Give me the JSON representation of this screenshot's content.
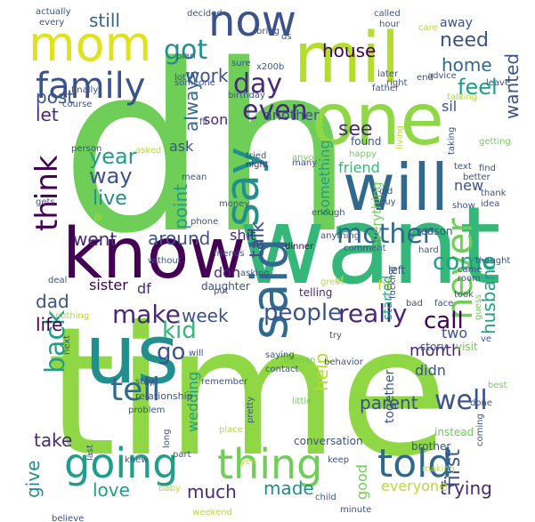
{
  "palette": {
    "lime": "#b5de2b",
    "green": "#6ece58",
    "bright_green": "#8fd744",
    "teal": "#1f9e89",
    "dark_teal": "#218f8d",
    "blue": "#31688e",
    "dark_blue": "#3b528b",
    "purple": "#482878",
    "dark_purple": "#440154",
    "cyan": "#35b779",
    "yellow": "#e0e31b"
  },
  "words": [
    {
      "id": "dh",
      "text": "dh",
      "color": "#6ece58"
    },
    {
      "id": "time",
      "text": "time",
      "color": "#8fd744"
    },
    {
      "id": "want",
      "text": "want",
      "color": "#35b779"
    },
    {
      "id": "know",
      "text": "know",
      "color": "#440154"
    },
    {
      "id": "one",
      "text": "one",
      "color": "#8fd744"
    },
    {
      "id": "mil",
      "text": "mil",
      "color": "#b5de2b"
    },
    {
      "id": "us",
      "text": "us",
      "color": "#218f8d"
    },
    {
      "id": "will",
      "text": "will",
      "color": "#31688e"
    },
    {
      "id": "mom",
      "text": "mom",
      "color": "#e0e31b"
    },
    {
      "id": "now",
      "text": "now",
      "color": "#3b528b"
    },
    {
      "id": "going",
      "text": "going",
      "color": "#1f9e89"
    },
    {
      "id": "thing",
      "text": "thing",
      "color": "#6ece58"
    },
    {
      "id": "told",
      "text": "told",
      "color": "#31688e"
    },
    {
      "id": "say",
      "text": "say",
      "color": "#218f8d"
    },
    {
      "id": "said",
      "text": "said",
      "color": "#31688e"
    },
    {
      "id": "family",
      "text": "family",
      "color": "#3b528b"
    },
    {
      "id": "back",
      "text": "back",
      "color": "#1f9e89"
    },
    {
      "id": "never",
      "text": "never",
      "color": "#6ece58"
    },
    {
      "id": "tell",
      "text": "tell",
      "color": "#31688e"
    },
    {
      "id": "make",
      "text": "make",
      "color": "#482878"
    },
    {
      "id": "really",
      "text": "really",
      "color": "#482878"
    },
    {
      "id": "people",
      "text": "people",
      "color": "#3b528b"
    },
    {
      "id": "think",
      "text": "think",
      "color": "#440154"
    },
    {
      "id": "even",
      "text": "even",
      "color": "#482878"
    },
    {
      "id": "got",
      "text": "got",
      "color": "#218f8d"
    },
    {
      "id": "day",
      "text": "day",
      "color": "#482878"
    },
    {
      "id": "mother",
      "text": "mother",
      "color": "#31688e"
    },
    {
      "id": "go",
      "text": "go",
      "color": "#3b528b"
    },
    {
      "id": "kid",
      "text": "kid",
      "color": "#35b779"
    },
    {
      "id": "well",
      "text": "well",
      "color": "#3b528b"
    },
    {
      "id": "call",
      "text": "call",
      "color": "#440154"
    },
    {
      "id": "house",
      "text": "house",
      "color": "#440154"
    },
    {
      "id": "need",
      "text": "need",
      "color": "#3b528b"
    },
    {
      "id": "home",
      "text": "home",
      "color": "#31688e"
    },
    {
      "id": "feel",
      "text": "feel",
      "color": "#1f9e89"
    },
    {
      "id": "wanted",
      "text": "wanted",
      "color": "#3b528b"
    },
    {
      "id": "see",
      "text": "see",
      "color": "#482878"
    },
    {
      "id": "come",
      "text": "come",
      "color": "#1f9e89"
    },
    {
      "id": "talk",
      "text": "talk",
      "color": "#3b528b"
    },
    {
      "id": "year",
      "text": "year",
      "color": "#1f9e89"
    },
    {
      "id": "way",
      "text": "way",
      "color": "#3b528b"
    },
    {
      "id": "live",
      "text": "live",
      "color": "#218f8d"
    },
    {
      "id": "around",
      "text": "around",
      "color": "#3b528b"
    },
    {
      "id": "went",
      "text": "went",
      "color": "#482878"
    },
    {
      "id": "still",
      "text": "still",
      "color": "#31688e"
    },
    {
      "id": "work",
      "text": "work",
      "color": "#3b528b"
    },
    {
      "id": "post",
      "text": "post",
      "color": "#3b528b"
    },
    {
      "id": "let",
      "text": "let",
      "color": "#482878"
    },
    {
      "id": "always",
      "text": "always",
      "color": "#31688e"
    },
    {
      "id": "point",
      "text": "point",
      "color": "#1f9e89"
    },
    {
      "id": "dad",
      "text": "dad",
      "color": "#3b528b"
    },
    {
      "id": "week",
      "text": "week",
      "color": "#3b528b"
    },
    {
      "id": "husband",
      "text": "husband",
      "color": "#1f9e89"
    },
    {
      "id": "parent",
      "text": "parent",
      "color": "#3b528b"
    },
    {
      "id": "help",
      "text": "help",
      "color": "#b5de2b"
    },
    {
      "id": "take",
      "text": "take",
      "color": "#482878"
    },
    {
      "id": "give",
      "text": "give",
      "color": "#218f8d"
    },
    {
      "id": "love",
      "text": "love",
      "color": "#1f9e89"
    },
    {
      "id": "much",
      "text": "much",
      "color": "#482878"
    },
    {
      "id": "made",
      "text": "made",
      "color": "#218f8d"
    },
    {
      "id": "first",
      "text": "first",
      "color": "#3b528b"
    },
    {
      "id": "trying",
      "text": "trying",
      "color": "#482878"
    },
    {
      "id": "everyone",
      "text": "everyone",
      "color": "#b5de2b"
    },
    {
      "id": "life",
      "text": "life",
      "color": "#440154"
    },
    {
      "id": "month",
      "text": "month",
      "color": "#482878"
    },
    {
      "id": "two",
      "text": "two",
      "color": "#3b528b"
    },
    {
      "id": "didn",
      "text": "didn",
      "color": "#3b528b"
    },
    {
      "id": "together",
      "text": "together",
      "color": "#3b528b"
    },
    {
      "id": "good",
      "text": "good",
      "color": "#6ece58"
    },
    {
      "id": "something",
      "text": "something",
      "color": "#1f9e89"
    },
    {
      "id": "everything",
      "text": "everything",
      "color": "#6ece58"
    },
    {
      "id": "friend",
      "text": "friend",
      "color": "#35b779"
    },
    {
      "id": "new",
      "text": "new",
      "color": "#3b528b"
    },
    {
      "id": "sister",
      "text": "sister",
      "color": "#440154"
    },
    {
      "id": "df",
      "text": "df",
      "color": "#482878"
    },
    {
      "id": "fil",
      "text": "fil",
      "color": "#b5de2b"
    },
    {
      "id": "started",
      "text": "started",
      "color": "#1f9e89"
    },
    {
      "id": "wedding",
      "text": "wedding",
      "color": "#1f9e89"
    },
    {
      "id": "shit",
      "text": "shit",
      "color": "#482878"
    },
    {
      "id": "ask",
      "text": "ask",
      "color": "#3b528b"
    },
    {
      "id": "son",
      "text": "son",
      "color": "#482878"
    },
    {
      "id": "sil",
      "text": "sil",
      "color": "#3b528b"
    },
    {
      "id": "another",
      "text": "another",
      "color": "#3b528b"
    },
    {
      "id": "don",
      "text": "don",
      "color": "#482878"
    },
    {
      "id": "conversation",
      "text": "conversation",
      "color": "#3b528b"
    },
    {
      "id": "instead",
      "text": "instead",
      "color": "#6ece58"
    },
    {
      "id": "brother",
      "text": "brother",
      "color": "#3b528b"
    },
    {
      "id": "visit",
      "text": "visit",
      "color": "#6ece58"
    },
    {
      "id": "story",
      "text": "story",
      "color": "#3b528b"
    },
    {
      "id": "telling",
      "text": "telling",
      "color": "#482878"
    },
    {
      "id": "daughter",
      "text": "daughter",
      "color": "#3b528b"
    },
    {
      "id": "relationship",
      "text": "relationship",
      "color": "#3b528b"
    },
    {
      "id": "problem",
      "text": "problem",
      "color": "#3b528b"
    },
    {
      "id": "dinner",
      "text": "dinner",
      "color": "#440154"
    },
    {
      "id": "comment",
      "text": "comment",
      "color": "#3b528b"
    },
    {
      "id": "reason",
      "text": "reason",
      "color": "#3b528b"
    },
    {
      "id": "found",
      "text": "found",
      "color": "#3b528b"
    },
    {
      "id": "living",
      "text": "living",
      "color": "#b5de2b"
    },
    {
      "id": "happy",
      "text": "happy",
      "color": "#6ece58"
    },
    {
      "id": "tried",
      "text": "tried",
      "color": "#3b528b"
    },
    {
      "id": "night",
      "text": "night",
      "color": "#482878"
    },
    {
      "id": "mean",
      "text": "mean",
      "color": "#3b528b"
    },
    {
      "id": "asked",
      "text": "asked",
      "color": "#b5de2b"
    },
    {
      "id": "money",
      "text": "money",
      "color": "#3b528b"
    },
    {
      "id": "gets",
      "text": "gets",
      "color": "#3b528b"
    },
    {
      "id": "without",
      "text": "without",
      "color": "#3b528b"
    },
    {
      "id": "deal",
      "text": "deal",
      "color": "#3b528b"
    },
    {
      "id": "phone",
      "text": "phone",
      "color": "#3b528b"
    },
    {
      "id": "friends",
      "text": "friends",
      "color": "#3b528b"
    },
    {
      "id": "fucking",
      "text": "fucking",
      "color": "#3b528b"
    },
    {
      "id": "left",
      "text": "left",
      "color": "#3b528b"
    },
    {
      "id": "woman",
      "text": "woman",
      "color": "#6ece58"
    },
    {
      "id": "guess",
      "text": "guess",
      "color": "#6ece58"
    },
    {
      "id": "took",
      "text": "took",
      "color": "#3b528b"
    },
    {
      "id": "hard",
      "text": "hard",
      "color": "#3b528b"
    },
    {
      "id": "thought",
      "text": "thought",
      "color": "#3b528b"
    },
    {
      "id": "best",
      "text": "best",
      "color": "#6ece58"
    },
    {
      "id": "baby",
      "text": "baby",
      "color": "#b5de2b"
    },
    {
      "id": "weekend",
      "text": "weekend",
      "color": "#b5de2b"
    },
    {
      "id": "child",
      "text": "child",
      "color": "#3b528b"
    },
    {
      "id": "minute",
      "text": "minute",
      "color": "#3b528b"
    },
    {
      "id": "place",
      "text": "place",
      "color": "#b5de2b"
    },
    {
      "id": "making",
      "text": "making",
      "color": "#b5de2b"
    },
    {
      "id": "keep",
      "text": "keep",
      "color": "#3b528b"
    },
    {
      "id": "pretty",
      "text": "pretty",
      "color": "#3b528b"
    },
    {
      "id": "little",
      "text": "little",
      "color": "#6ece58"
    },
    {
      "id": "remember",
      "text": "remember",
      "color": "#3b528b"
    },
    {
      "id": "saying",
      "text": "saying",
      "color": "#3b528b"
    },
    {
      "id": "contact",
      "text": "contact",
      "color": "#3b528b"
    },
    {
      "id": "bil",
      "text": "bil",
      "color": "#3b528b"
    },
    {
      "id": "stay",
      "text": "stay",
      "color": "#3b528b"
    },
    {
      "id": "knew",
      "text": "knew",
      "color": "#3b528b"
    },
    {
      "id": "part",
      "text": "part",
      "color": "#3b528b"
    },
    {
      "id": "long",
      "text": "long",
      "color": "#3b528b"
    },
    {
      "id": "behavior",
      "text": "behavior",
      "color": "#3b528b"
    },
    {
      "id": "next",
      "text": "next",
      "color": "#3b528b"
    },
    {
      "id": "nothing",
      "text": "nothing",
      "color": "#b5de2b"
    },
    {
      "id": "many",
      "text": "many",
      "color": "#3b528b"
    },
    {
      "id": "anyone",
      "text": "anyone",
      "color": "#6ece58"
    },
    {
      "id": "actually",
      "text": "actually",
      "color": "#3b528b"
    },
    {
      "id": "every",
      "text": "every",
      "color": "#3b528b"
    },
    {
      "id": "decided",
      "text": "decided",
      "color": "#3b528b"
    },
    {
      "id": "called",
      "text": "called",
      "color": "#3b528b"
    },
    {
      "id": "hour",
      "text": "hour",
      "color": "#3b528b"
    },
    {
      "id": "away",
      "text": "away",
      "color": "#3b528b"
    },
    {
      "id": "care",
      "text": "care",
      "color": "#b5de2b"
    },
    {
      "id": "plan",
      "text": "plan",
      "color": "#3b528b"
    },
    {
      "id": "lot",
      "text": "lot",
      "color": "#3b528b"
    },
    {
      "id": "bring",
      "text": "bring",
      "color": "#3b528b"
    },
    {
      "id": "ds",
      "text": "ds",
      "color": "#3b528b"
    },
    {
      "id": "sure",
      "text": "sure",
      "color": "#3b528b"
    },
    {
      "id": "x200b",
      "text": "x200b",
      "color": "#3b528b"
    },
    {
      "id": "later",
      "text": "later",
      "color": "#3b528b"
    },
    {
      "id": "right",
      "text": "right",
      "color": "#3b528b"
    },
    {
      "id": "end",
      "text": "end",
      "color": "#3b528b"
    },
    {
      "id": "advice",
      "text": "advice",
      "color": "#3b528b"
    },
    {
      "id": "father",
      "text": "father",
      "color": "#3b528b"
    },
    {
      "id": "talking",
      "text": "talking",
      "color": "#b5de2b"
    },
    {
      "id": "finally",
      "text": "finally",
      "color": "#3b528b"
    },
    {
      "id": "course",
      "text": "course",
      "color": "#3b528b"
    },
    {
      "id": "someone",
      "text": "someone",
      "color": "#3b528b"
    },
    {
      "id": "birthday",
      "text": "birthday",
      "color": "#3b528b"
    },
    {
      "id": "taking",
      "text": "taking",
      "color": "#3b528b"
    },
    {
      "id": "getting",
      "text": "getting",
      "color": "#6ece58"
    },
    {
      "id": "find",
      "text": "find",
      "color": "#3b528b"
    },
    {
      "id": "text",
      "text": "text",
      "color": "#3b528b"
    },
    {
      "id": "better",
      "text": "better",
      "color": "#3b528b"
    },
    {
      "id": "thank",
      "text": "thank",
      "color": "#3b528b"
    },
    {
      "id": "idea",
      "text": "idea",
      "color": "#3b528b"
    },
    {
      "id": "show",
      "text": "show",
      "color": "#3b528b"
    },
    {
      "id": "old",
      "text": "old",
      "color": "#3b528b"
    },
    {
      "id": "guy",
      "text": "guy",
      "color": "#3b528b"
    },
    {
      "id": "enough",
      "text": "enough",
      "color": "#3b528b"
    },
    {
      "id": "anything",
      "text": "anything",
      "color": "#3b528b"
    },
    {
      "id": "person",
      "text": "person",
      "color": "#3b528b"
    },
    {
      "id": "came",
      "text": "came",
      "color": "#3b528b"
    },
    {
      "id": "room",
      "text": "room",
      "color": "#3b528b"
    },
    {
      "id": "bf",
      "text": "bf",
      "color": "#b5de2b"
    },
    {
      "id": "put",
      "text": "put",
      "color": "#3b528b"
    },
    {
      "id": "great",
      "text": "great",
      "color": "#b5de2b"
    },
    {
      "id": "bad",
      "text": "bad",
      "color": "#3b528b"
    },
    {
      "id": "face",
      "text": "face",
      "color": "#3b528b"
    },
    {
      "id": "try",
      "text": "try",
      "color": "#3b528b"
    },
    {
      "id": "done",
      "text": "done",
      "color": "#3b528b"
    },
    {
      "id": "coming",
      "text": "coming",
      "color": "#3b528b"
    },
    {
      "id": "ve",
      "text": "ve",
      "color": "#3b528b"
    },
    {
      "id": "yes",
      "text": "yes",
      "color": "#b5de2b"
    },
    {
      "id": "last",
      "text": "last",
      "color": "#3b528b"
    },
    {
      "id": "believe",
      "text": "believe",
      "color": "#3b528b"
    },
    {
      "id": "will2",
      "text": "will",
      "color": "#3b528b"
    },
    {
      "id": "leave",
      "text": "leave",
      "color": "#3b528b"
    },
    {
      "id": "mil2",
      "text": "fil",
      "color": "#3b528b"
    },
    {
      "id": "ill",
      "text": "ill",
      "color": "#b5de2b"
    },
    {
      "id": "asking",
      "text": "asking",
      "color": "#3b528b"
    }
  ]
}
